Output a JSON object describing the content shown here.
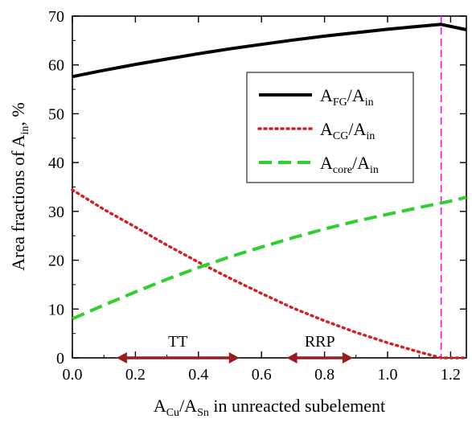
{
  "chart_data": {
    "type": "line",
    "title": "",
    "xlabel": {
      "base": "A",
      "sub1": "Cu",
      "slash": "/A",
      "sub2": "Sn",
      "rest": " in unreacted subelement"
    },
    "ylabel": {
      "base": "Area fractions of A",
      "sub": "in",
      "rest": ", %"
    },
    "xlim": [
      0.0,
      1.25
    ],
    "ylim": [
      0,
      70
    ],
    "xticks": [
      0.0,
      0.2,
      0.4,
      0.6,
      0.8,
      1.0,
      1.2
    ],
    "xtick_labels": [
      "0.0",
      "0.2",
      "0.4",
      "0.6",
      "0.8",
      "1.0",
      "1.2"
    ],
    "yticks": [
      0,
      10,
      20,
      30,
      40,
      50,
      60,
      70
    ],
    "ytick_labels": [
      "0",
      "10",
      "20",
      "30",
      "40",
      "50",
      "60",
      "70"
    ],
    "legend_placement": "top-right",
    "series": [
      {
        "name": "AFG/Ain",
        "legend_base": "A",
        "legend_sub1": "FG",
        "legend_slash": "/A",
        "legend_sub2": "in",
        "color": "#000000",
        "style": "solid",
        "x": [
          0.0,
          0.1,
          0.2,
          0.3,
          0.4,
          0.5,
          0.6,
          0.7,
          0.8,
          0.9,
          1.0,
          1.1,
          1.17,
          1.25
        ],
        "y": [
          57.6,
          58.9,
          60.1,
          61.2,
          62.3,
          63.3,
          64.2,
          65.1,
          65.9,
          66.6,
          67.3,
          67.9,
          68.3,
          67.2
        ]
      },
      {
        "name": "ACG/Ain",
        "legend_base": "A",
        "legend_sub1": "CG",
        "legend_slash": "/A",
        "legend_sub2": "in",
        "color": "#d42020",
        "style": "dotted",
        "x": [
          0.0,
          0.1,
          0.2,
          0.3,
          0.4,
          0.5,
          0.6,
          0.7,
          0.8,
          0.9,
          1.0,
          1.1,
          1.17,
          1.2,
          1.25
        ],
        "y": [
          34.4,
          30.4,
          26.8,
          23.1,
          19.6,
          16.3,
          13.2,
          10.2,
          7.6,
          5.2,
          3.1,
          1.2,
          0.0,
          0.0,
          0.0
        ]
      },
      {
        "name": "Acore/Ain",
        "legend_base": "A",
        "legend_sub1": "core",
        "legend_slash": "/A",
        "legend_sub2": "in",
        "color": "#2fcf2f",
        "style": "dashed",
        "x": [
          0.0,
          0.1,
          0.2,
          0.3,
          0.4,
          0.5,
          0.6,
          0.7,
          0.8,
          0.9,
          1.0,
          1.1,
          1.2,
          1.25
        ],
        "y": [
          8.0,
          10.8,
          13.5,
          16.1,
          18.5,
          20.7,
          22.7,
          24.6,
          26.4,
          28.0,
          29.4,
          30.8,
          32.1,
          32.9
        ]
      }
    ],
    "vline": {
      "x": 1.17,
      "color": "#ff00ff"
    },
    "ranges": [
      {
        "label": "TT",
        "x_start": 0.14,
        "x_end": 0.53,
        "y": 0,
        "color": "#9b1c1c"
      },
      {
        "label": "RRP",
        "x_start": 0.68,
        "x_end": 0.89,
        "y": 0,
        "color": "#9b1c1c"
      }
    ]
  }
}
